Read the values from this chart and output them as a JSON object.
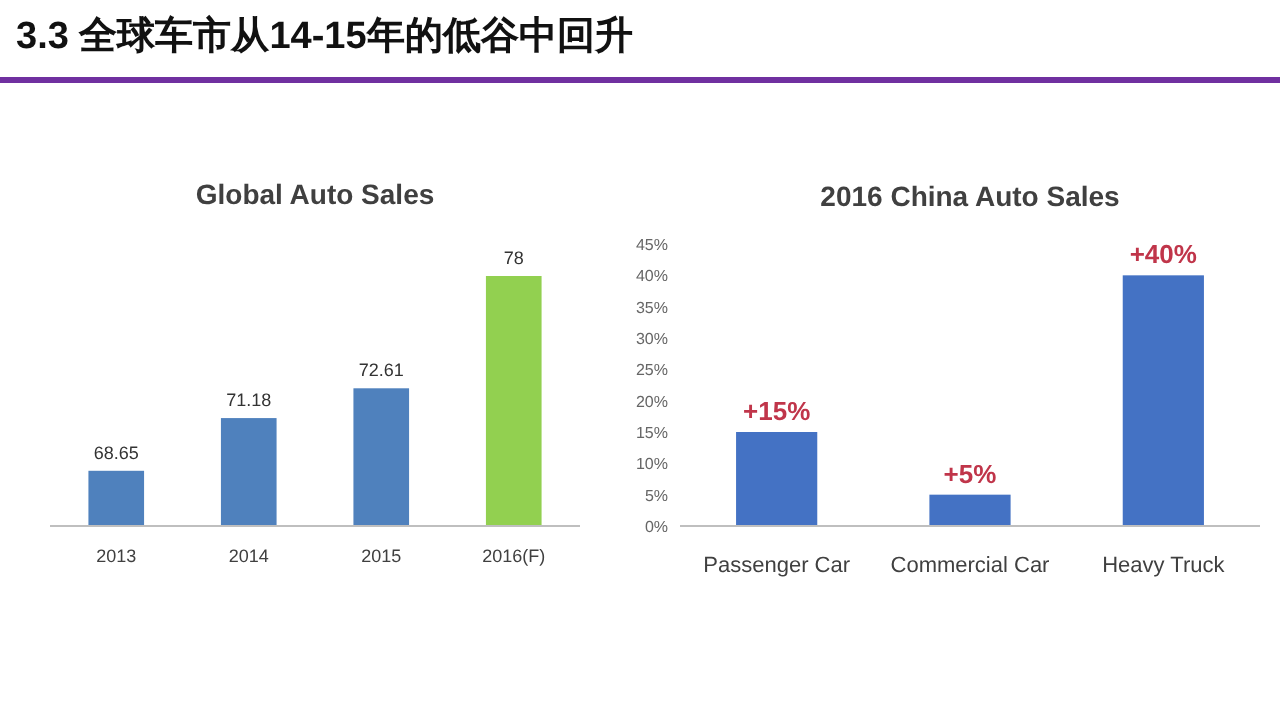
{
  "chart_data": [
    {
      "type": "bar",
      "title": "Global Auto Sales",
      "annotations": [
        "3.3 全球车市从14-15年的低谷中回升"
      ],
      "categories": [
        "2013",
        "2014",
        "2015",
        "2016(F)"
      ],
      "values": [
        68.65,
        71.18,
        72.61,
        78
      ],
      "colors": [
        "#4f81bd",
        "#4f81bd",
        "#4f81bd",
        "#92d050"
      ],
      "data_labels": true,
      "ylim": [
        66,
        78
      ],
      "tick_labels": "x",
      "grid": false
    },
    {
      "type": "bar",
      "title": "2016 China Auto Sales",
      "categories": [
        "Passenger Car",
        "Commercial Car",
        "Heavy Truck"
      ],
      "values": [
        15,
        5,
        40
      ],
      "color": "#4472c4",
      "value_labels": [
        "+15%",
        "+5%",
        "+40%"
      ],
      "ylim": [
        0,
        45
      ],
      "yticks": [
        {
          "value": 0,
          "label": "0%"
        },
        {
          "value": 5,
          "label": "5%"
        },
        {
          "value": 10,
          "label": "10%"
        },
        {
          "value": 15,
          "label": "15%"
        },
        {
          "value": 20,
          "label": "20%"
        },
        {
          "value": 25,
          "label": "25%"
        },
        {
          "value": 30,
          "label": "30%"
        },
        {
          "value": 35,
          "label": "35%"
        },
        {
          "value": 40,
          "label": "40%"
        },
        {
          "value": 45,
          "label": "45%"
        }
      ],
      "grid": false
    }
  ]
}
